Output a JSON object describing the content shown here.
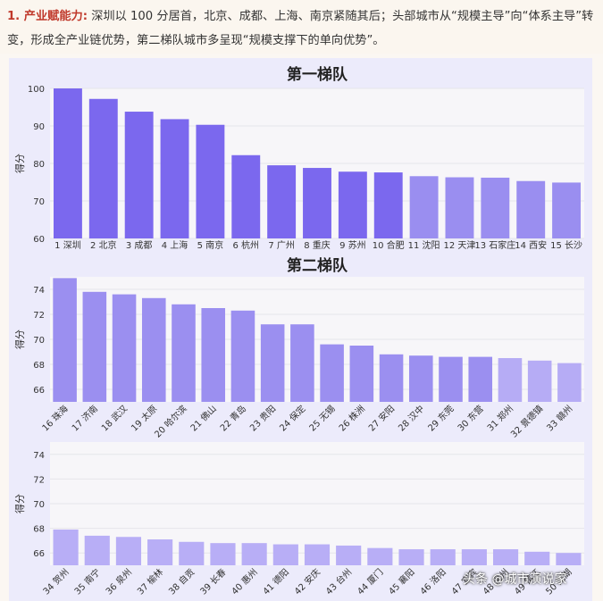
{
  "intro": {
    "heading": "1. 产业赋能力:",
    "text": "深圳以 100 分居首，北京、成都、上海、南京紧随其后；头部城市从“规模主导”向“体系主导”转变，形成全产业链优势，第二梯队城市多呈现“规模支撑下的单向优势”。"
  },
  "watermark": "头条 @城市演说家",
  "colors": {
    "tier1_strong": "#7b68ee",
    "tier1_light": "#9a8ef0",
    "tier2": "#9b8ff0",
    "tier2_light": "#b6acf5",
    "tier3": "#b8aef6"
  },
  "chart_data": [
    {
      "type": "bar",
      "title": "第一梯队",
      "ylabel": "得分",
      "ylim": [
        60,
        100
      ],
      "yticks": [
        60,
        70,
        80,
        90,
        100
      ],
      "categories": [
        "1 深圳",
        "2 北京",
        "3 成都",
        "4 上海",
        "5 南京",
        "6 杭州",
        "7 广州",
        "8 重庆",
        "9 苏州",
        "10 合肥",
        "11 沈阳",
        "12 天津",
        "13 石家庄",
        "14 西安",
        "15 长沙"
      ],
      "values": [
        100,
        97.2,
        93.8,
        91.8,
        90.3,
        82.2,
        79.5,
        78.8,
        77.8,
        77.6,
        76.6,
        76.3,
        76.2,
        75.3,
        74.9
      ]
    },
    {
      "type": "bar",
      "title": "第二梯队",
      "ylabel": "得分",
      "ylim": [
        65,
        75
      ],
      "yticks": [
        66,
        68,
        70,
        72,
        74
      ],
      "categories": [
        "16 珠海",
        "17 济南",
        "18 武汉",
        "19 太原",
        "20 哈尔滨",
        "21 佛山",
        "22 青岛",
        "23 贵阳",
        "24 保定",
        "25 无锡",
        "26 株洲",
        "27 安阳",
        "28 汉中",
        "29 东莞",
        "30 东营",
        "31 郑州",
        "32 景德镇",
        "33 赣州"
      ],
      "values": [
        74.9,
        73.8,
        73.6,
        73.3,
        72.8,
        72.5,
        72.3,
        71.2,
        71.2,
        69.6,
        69.5,
        68.8,
        68.7,
        68.6,
        68.6,
        68.5,
        68.3,
        68.1
      ]
    },
    {
      "type": "bar",
      "title": "",
      "ylabel": "得分",
      "ylim": [
        65,
        75
      ],
      "yticks": [
        66,
        68,
        70,
        72,
        74
      ],
      "categories": [
        "34 贺州",
        "35 南宁",
        "36 泉州",
        "37 榆林",
        "38 自贡",
        "39 长春",
        "40 惠州",
        "41 德阳",
        "42 安庆",
        "43 台州",
        "44 厦门",
        "45 襄阳",
        "46 洛阳",
        "47 宜宾",
        "48 温州",
        "49 镇江",
        "50 芜湖"
      ],
      "values": [
        67.9,
        67.4,
        67.3,
        67.1,
        66.9,
        66.8,
        66.8,
        66.7,
        66.7,
        66.6,
        66.4,
        66.3,
        66.3,
        66.3,
        66.3,
        66.1,
        66.0
      ]
    }
  ]
}
